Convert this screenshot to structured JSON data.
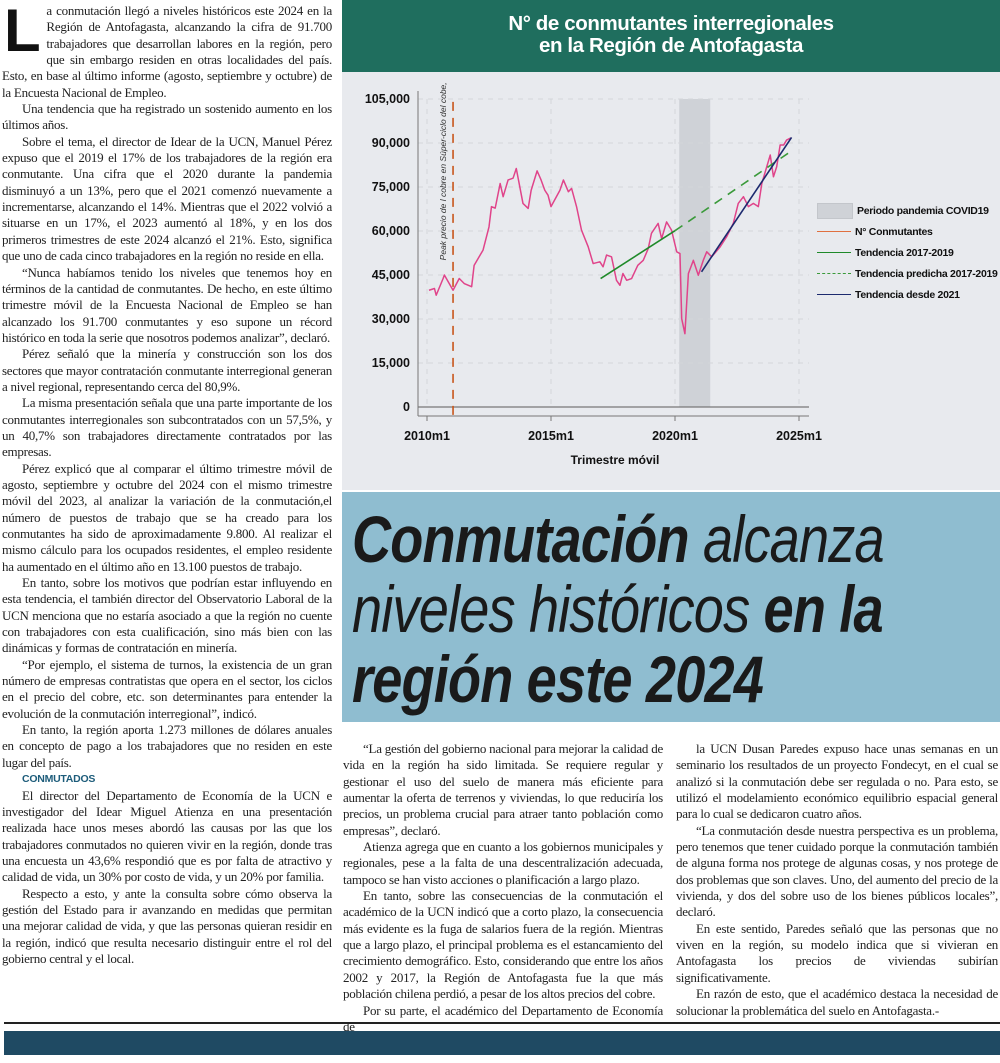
{
  "article": {
    "dropcap": "L",
    "left_paragraphs": [
      "a conmutación llegó a niveles históricos este 2024 en la Región de Antofagasta, alcanzando la cifra de 91.700 trabajadores que desarrollan labores en la región, pero que sin embargo residen en otras localidades del país. Esto, en base al último informe (agosto, septiembre y octubre) de la Encuesta Nacional de Empleo.",
      "Una tendencia que ha registrado un sostenido aumento en los últimos años.",
      "Sobre el tema, el director de Idear de la UCN, Manuel Pérez expuso que el 2019 el 17% de los trabajadores de la región era conmutante. Una cifra que el 2020 durante la pandemia disminuyó a un 13%, pero que el 2021 comenzó nuevamente a incrementarse, alcanzando el 14%. Mientras que el 2022 volvió a situarse en un 17%, el 2023 aumentó al 18%, y en los dos primeros trimestres de este 2024 alcanzó el 21%. Esto, significa que uno de cada cinco trabajadores en la región no reside en ella.",
      "“Nunca habíamos tenido los niveles que tenemos hoy en términos de la cantidad de conmutantes. De hecho, en este último trimestre móvil de la Encuesta Nacional de Empleo se han alcanzado los 91.700 conmutantes y eso supone un récord histórico en toda la serie que nosotros podemos analizar”, declaró.",
      "Pérez señaló que la minería y construcción son los dos sectores que mayor contratación conmutante interregional generan a nivel regional, representando cerca del 80,9%.",
      "La misma presentación señala que una parte importante de los conmutantes interregionales son subcontratados con un 57,5%, y un 40,7% son trabajadores directamente contratados por las empresas.",
      "Pérez explicó que al comparar el último trimestre móvil de agosto, septiembre y octubre del 2024 con el mismo trimestre móvil del 2023, al analizar la variación de la conmutación,el número de puestos de trabajo que se ha creado para los conmutantes ha sido de aproximadamente 9.800. Al realizar el mismo cálculo para los ocupados residentes, el empleo residente ha aumentado en el último año en 13.100 puestos de trabajo.",
      "En tanto, sobre los motivos que podrían estar influyendo en esta tendencia, el también director del Observatorio Laboral de la UCN menciona que no estaría asociado a que la región no cuente con trabajadores con esta cualificación, sino más bien con las dinámicas y formas de contratación en minería.",
      "“Por ejemplo, el sistema de turnos, la existencia de un gran número de empresas contratistas que opera en el sector, los ciclos en el precio del cobre, etc. son determinantes para entender la evolución de la conmutación interregional”, indicó.",
      "En tanto, la región aporta 1.273 millones de dólares anuales en concepto de pago a los trabajadores que no residen en este lugar del país."
    ],
    "subhead": "CONMUTADOS",
    "left_after_subhead": [
      "El director del Departamento de Economía de la UCN e investigador del Idear Miguel Atienza en una presentación realizada hace unos meses abordó las causas por las que los trabajadores conmutados no quieren vivir en la región, donde tras una encuesta un 43,6% respondió que es por falta de atractivo y calidad de vida, un 30% por costo de vida, y un 20% por familia.",
      "Respecto a esto, y ante la consulta sobre cómo observa la gestión del Estado para ir avanzando en medidas que permitan una mejorar calidad de vida, y que las personas quieran residir en la región, indicó que resulta necesario distinguir entre el rol del gobierno central y el local."
    ],
    "mid_paragraphs": [
      "“La gestión del gobierno nacional para mejorar la calidad de vida en la región ha sido limitada. Se requiere regular y gestionar el uso del suelo de manera más eficiente para aumentar la oferta de terrenos y viviendas, lo que reduciría los precios, un problema crucial para atraer tanto población como empresas”, declaró.",
      "Atienza agrega que en cuanto a los gobiernos municipales y regionales, pese a la falta de una descentralización adecuada, tampoco se han visto acciones o planificación a largo plazo.",
      "En tanto, sobre las consecuencias de la conmutación el académico de la UCN indicó que a corto plazo, la consecuencia más evidente es la fuga de salarios fuera de la región. Mientras que a largo plazo, el principal problema es el estancamiento del crecimiento demográfico. Esto, considerando que entre los años 2002 y 2017, la Región de Antofagasta fue la que más población chilena perdió, a pesar de los altos precios del cobre.",
      "Por su parte, el académico del Departamento de Economía de"
    ],
    "right_paragraphs": [
      "la UCN Dusan Paredes expuso hace unas semanas en un seminario los resultados de un proyecto Fondecyt, en el cual se analizó si la conmutación debe ser regulada o no. Para esto, se utilizó el modelamiento económico equilibrio espacial general para lo cual se dedicaron cuatro años.",
      "“La conmutación desde nuestra perspectiva es un problema, pero tenemos que tener cuidado porque la conmutación también de alguna forma nos protege de algunas cosas, y nos protege de dos problemas que son claves. Uno, del aumento del precio de la vivienda, y dos del sobre uso de los bienes públicos locales”, declaró.",
      "En este sentido, Paredes señaló que las personas que no viven en la región, su modelo indica que si vivieran en Antofagasta los precios de viviendas subirían significativamente.",
      "En razón de esto, que el académico destaca la necesidad de solucionar la problemática del suelo en Antofagasta.-"
    ]
  },
  "headline": {
    "line1_bold": "Conmutación",
    "line1_light": "alcanza",
    "line2_light": "niveles históricos",
    "line2_bold": "en la",
    "line3_bold": "región este 2024"
  },
  "colors": {
    "header_bg": "#1f6e5e",
    "headline_bg": "#8fbdd0",
    "series": "#e0448a",
    "trend_2017": "#1f8a2a",
    "trend_2021": "#1c2a6e",
    "copper_peak": "#c8561b",
    "covid_shade": "#cfd2d7",
    "footer_band": "#1f4a63"
  },
  "chart_data": {
    "type": "line",
    "title_lines": [
      "N° de conmutantes interregionales",
      "en la Región de Antofagasta"
    ],
    "xlabel": "Trimestre móvil",
    "ylabel": "",
    "xlim": [
      2009.9,
      2025.4
    ],
    "ylim": [
      0,
      105000
    ],
    "x_ticks": [
      2010,
      2015,
      2020,
      2025
    ],
    "x_tick_labels": [
      "2010m1",
      "2015m1",
      "2020m1",
      "2025m1"
    ],
    "y_ticks": [
      0,
      15000,
      30000,
      45000,
      60000,
      75000,
      90000,
      105000
    ],
    "y_tick_labels": [
      "0",
      "15,000",
      "30,000",
      "45,000",
      "60,000",
      "75,000",
      "90,000",
      "105,000"
    ],
    "grid": true,
    "legend_placement": "right",
    "legend": [
      "Periodo pandemia COVID19",
      "N° Conmutantes",
      "Tendencia 2017-2019",
      "Tendencia predicha 2017-2019",
      "Tendencia desde 2021"
    ],
    "annotation": "Peak precio de l cobre en Súper-ciclo del cobe,",
    "annotation_x": 2011.05,
    "covid_period": [
      2020.17,
      2021.42
    ],
    "series": [
      {
        "name": "N° Conmutantes",
        "points": [
          [
            2010.08,
            39800
          ],
          [
            2010.3,
            40400
          ],
          [
            2010.37,
            38100
          ],
          [
            2010.65,
            43800
          ],
          [
            2010.7,
            45000
          ],
          [
            2011.05,
            39800
          ],
          [
            2011.3,
            43800
          ],
          [
            2011.5,
            42100
          ],
          [
            2011.8,
            41000
          ],
          [
            2011.9,
            48300
          ],
          [
            2012.26,
            53500
          ],
          [
            2012.5,
            61400
          ],
          [
            2012.6,
            68300
          ],
          [
            2012.75,
            67800
          ],
          [
            2012.95,
            76200
          ],
          [
            2013.07,
            71700
          ],
          [
            2013.27,
            77400
          ],
          [
            2013.47,
            78000
          ],
          [
            2013.6,
            81300
          ],
          [
            2013.87,
            69400
          ],
          [
            2014.08,
            67700
          ],
          [
            2014.2,
            73900
          ],
          [
            2014.44,
            80500
          ],
          [
            2014.6,
            77400
          ],
          [
            2014.75,
            73900
          ],
          [
            2014.88,
            72200
          ],
          [
            2015.0,
            68300
          ],
          [
            2015.36,
            73900
          ],
          [
            2015.5,
            77400
          ],
          [
            2015.7,
            73400
          ],
          [
            2015.83,
            74500
          ],
          [
            2016.03,
            68300
          ],
          [
            2016.23,
            60300
          ],
          [
            2016.5,
            54600
          ],
          [
            2016.7,
            48900
          ],
          [
            2016.97,
            49500
          ],
          [
            2017.1,
            47800
          ],
          [
            2017.24,
            51800
          ],
          [
            2017.44,
            51200
          ],
          [
            2017.64,
            43200
          ],
          [
            2017.78,
            41500
          ],
          [
            2017.9,
            45500
          ],
          [
            2018.05,
            43200
          ],
          [
            2018.25,
            43800
          ],
          [
            2018.5,
            48300
          ],
          [
            2018.72,
            50000
          ],
          [
            2018.92,
            54000
          ],
          [
            2019.05,
            59200
          ],
          [
            2019.32,
            62600
          ],
          [
            2019.46,
            57400
          ],
          [
            2019.66,
            63100
          ],
          [
            2019.86,
            60300
          ],
          [
            2020.07,
            52900
          ],
          [
            2020.2,
            52300
          ],
          [
            2020.27,
            30100
          ],
          [
            2020.4,
            25000
          ],
          [
            2020.54,
            45500
          ],
          [
            2020.74,
            50000
          ],
          [
            2020.94,
            44900
          ],
          [
            2021.14,
            50000
          ],
          [
            2021.28,
            52900
          ],
          [
            2021.48,
            51200
          ],
          [
            2021.82,
            54600
          ],
          [
            2022.08,
            58000
          ],
          [
            2022.35,
            62600
          ],
          [
            2022.55,
            69400
          ],
          [
            2022.76,
            71700
          ],
          [
            2022.96,
            68300
          ],
          [
            2023.16,
            69400
          ],
          [
            2023.36,
            68300
          ],
          [
            2023.5,
            76200
          ],
          [
            2023.7,
            81900
          ],
          [
            2023.84,
            85900
          ],
          [
            2023.97,
            78500
          ],
          [
            2024.1,
            81900
          ],
          [
            2024.24,
            89300
          ],
          [
            2024.38,
            89300
          ],
          [
            2024.5,
            91000
          ],
          [
            2024.66,
            91700
          ]
        ]
      },
      {
        "name": "Tendencia 2017-2019",
        "points": [
          [
            2017.0,
            43800
          ],
          [
            2020.0,
            60100
          ]
        ]
      },
      {
        "name": "Tendencia predicha 2017-2019",
        "points": [
          [
            2020.0,
            60100
          ],
          [
            2024.75,
            87600
          ]
        ]
      },
      {
        "name": "Tendencia desde 2021",
        "points": [
          [
            2021.07,
            46100
          ],
          [
            2024.7,
            91900
          ]
        ]
      }
    ]
  }
}
